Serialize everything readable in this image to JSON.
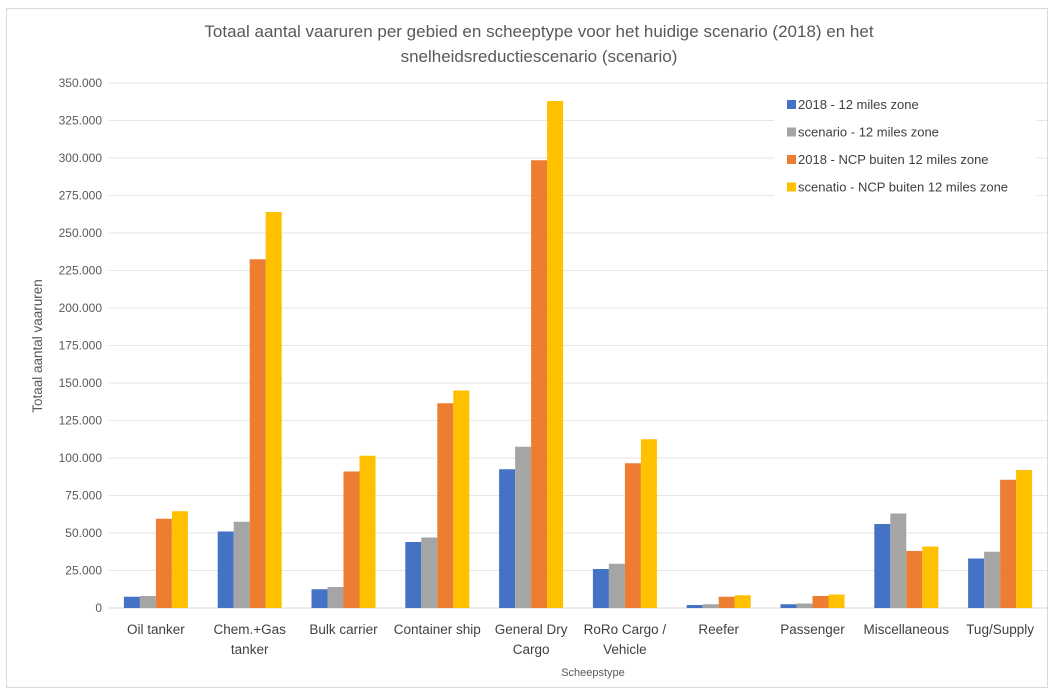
{
  "chart_data": {
    "type": "bar",
    "title": "Totaal aantal vaaruren per gebied en scheeptype voor het huidige scenario  (2018) en het snelheidsreductiescenario (scenario)",
    "title_lines": [
      "Totaal aantal vaaruren per gebied en scheeptype voor het huidige scenario  (2018) en het",
      "snelheidsreductiescenario (scenario)"
    ],
    "xlabel": "Scheepstype",
    "ylabel": "Totaal aantal vaaruren",
    "ylim": [
      0,
      350000
    ],
    "ytick_step": 25000,
    "ytick_labels": [
      "0",
      "25.000",
      "50.000",
      "75.000",
      "100.000",
      "125.000",
      "150.000",
      "175.000",
      "200.000",
      "225.000",
      "250.000",
      "275.000",
      "300.000",
      "325.000",
      "350.000"
    ],
    "grid": true,
    "legend_position": "top-right",
    "categories": [
      [
        "Oil tanker"
      ],
      [
        "Chem.+Gas",
        "tanker"
      ],
      [
        "Bulk carrier"
      ],
      [
        "Container ship"
      ],
      [
        "General Dry",
        "Cargo"
      ],
      [
        "RoRo Cargo /",
        "Vehicle"
      ],
      [
        "Reefer"
      ],
      [
        "Passenger"
      ],
      [
        "Miscellaneous"
      ],
      [
        "Tug/Supply"
      ]
    ],
    "series": [
      {
        "name": "2018 - 12 miles zone",
        "color": "#4472C4",
        "values": [
          7500,
          51000,
          12500,
          44000,
          92500,
          26000,
          2000,
          2500,
          56000,
          33000
        ]
      },
      {
        "name": "scenario - 12 miles zone",
        "color": "#A5A5A5",
        "values": [
          8000,
          57500,
          14000,
          47000,
          107500,
          29500,
          2500,
          3000,
          63000,
          37500
        ]
      },
      {
        "name": "2018 - NCP buiten 12 miles zone",
        "color": "#ED7D31",
        "values": [
          59500,
          232500,
          91000,
          136500,
          298500,
          96500,
          7500,
          8000,
          38000,
          85500
        ]
      },
      {
        "name": "scenatio - NCP buiten 12 miles zone",
        "color": "#FFC000",
        "values": [
          64500,
          264000,
          101500,
          145000,
          338000,
          112500,
          8500,
          9000,
          41000,
          92000
        ]
      }
    ]
  }
}
